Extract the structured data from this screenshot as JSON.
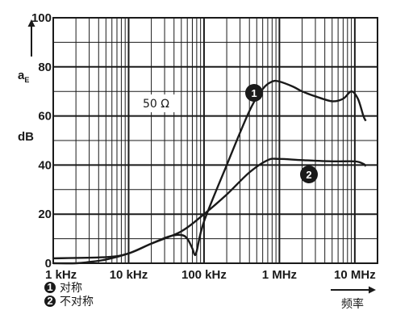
{
  "chart_data": {
    "type": "line",
    "x_scale": "log",
    "xlim": [
      1000,
      20000000
    ],
    "ylim": [
      0,
      100
    ],
    "grid": true,
    "ylabel_main": "a",
    "ylabel_sub": "E",
    "yunit": "dB",
    "xlabel": "频率",
    "x_ticks": [
      {
        "value": 1000,
        "label": "1 kHz"
      },
      {
        "value": 10000,
        "label": "10 kHz"
      },
      {
        "value": 100000,
        "label": "100 kHz"
      },
      {
        "value": 1000000,
        "label": "1 MHz"
      },
      {
        "value": 10000000,
        "label": "10 MHz"
      }
    ],
    "y_ticks": [
      0,
      20,
      40,
      60,
      80,
      100
    ],
    "y_tick_labels": [
      "0",
      "20",
      "40",
      "60",
      "80",
      "100"
    ],
    "annotation": "50 Ω",
    "series": [
      {
        "badge": "1",
        "name": "对称",
        "points": [
          [
            1000,
            2
          ],
          [
            5000,
            2.5
          ],
          [
            10000,
            4
          ],
          [
            20000,
            8
          ],
          [
            35000,
            11
          ],
          [
            50000,
            11.5
          ],
          [
            60000,
            10
          ],
          [
            70000,
            6
          ],
          [
            75000,
            3.5
          ],
          [
            80000,
            5
          ],
          [
            100000,
            17
          ],
          [
            200000,
            40
          ],
          [
            400000,
            62
          ],
          [
            600000,
            71
          ],
          [
            800000,
            74
          ],
          [
            1000000,
            74
          ],
          [
            1500000,
            72
          ],
          [
            2000000,
            70
          ],
          [
            3000000,
            68
          ],
          [
            5000000,
            66
          ],
          [
            7000000,
            67
          ],
          [
            9000000,
            70
          ],
          [
            11000000,
            67
          ],
          [
            13000000,
            60
          ],
          [
            14000000,
            58
          ]
        ]
      },
      {
        "badge": "2",
        "name": "不对称",
        "points": [
          [
            1000,
            0
          ],
          [
            2000,
            0
          ],
          [
            3000,
            0.5
          ],
          [
            5000,
            1.5
          ],
          [
            10000,
            4
          ],
          [
            20000,
            8
          ],
          [
            50000,
            13
          ],
          [
            100000,
            20
          ],
          [
            200000,
            28
          ],
          [
            400000,
            37
          ],
          [
            700000,
            42
          ],
          [
            1000000,
            42.5
          ],
          [
            2000000,
            42
          ],
          [
            5000000,
            41.5
          ],
          [
            10000000,
            41.5
          ],
          [
            13000000,
            40.5
          ],
          [
            14000000,
            39.5
          ]
        ]
      }
    ]
  }
}
